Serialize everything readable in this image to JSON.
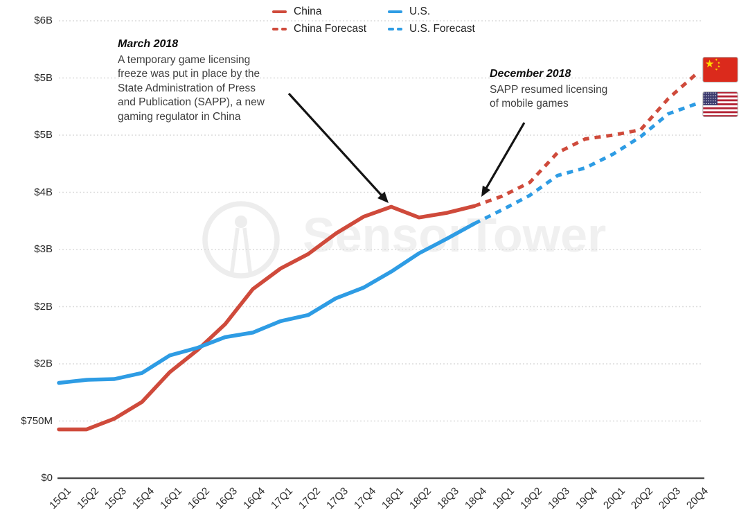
{
  "legend": {
    "items": [
      {
        "label": "China",
        "color": "#CF4A3B",
        "style": "solid"
      },
      {
        "label": "U.S.",
        "color": "#2E9CE4",
        "style": "solid"
      },
      {
        "label": "China Forecast",
        "color": "#CF4A3B",
        "style": "dashed"
      },
      {
        "label": "U.S. Forecast",
        "color": "#2E9CE4",
        "style": "dashed"
      }
    ]
  },
  "annotations": [
    {
      "title": "March 2018",
      "body": "A temporary game licensing freeze was put in place by the State Administration of Press and Publication (SAPP), a new gaming regulator in China"
    },
    {
      "title": "December 2018",
      "body": "SAPP resumed licensing of mobile games"
    }
  ],
  "watermark": {
    "text": "SensorTower",
    "icon": "sensor-tower-logo-icon"
  },
  "icons": {
    "china_flag": "china-flag-icon",
    "us_flag": "us-flag-icon"
  },
  "colors": {
    "china": "#CF4A3B",
    "us": "#2E9CE4",
    "grid": "#DCDCDC",
    "annotation": "#3D3D3D"
  },
  "chart_data": {
    "type": "line",
    "unit": "USD billions per quarter",
    "categories": [
      "15Q1",
      "15Q2",
      "15Q3",
      "15Q4",
      "16Q1",
      "16Q2",
      "16Q3",
      "16Q4",
      "17Q1",
      "17Q2",
      "17Q3",
      "17Q4",
      "18Q1",
      "18Q2",
      "18Q3",
      "18Q4",
      "19Q1",
      "19Q2",
      "19Q3",
      "19Q4",
      "20Q1",
      "20Q2",
      "20Q3",
      "20Q4"
    ],
    "y_ticks": [
      {
        "label": "$6B",
        "value": 6
      },
      {
        "label": "$5B",
        "value": 5.25
      },
      {
        "label": "$5B",
        "value": 4.5
      },
      {
        "label": "$4B",
        "value": 3.75
      },
      {
        "label": "$3B",
        "value": 3
      },
      {
        "label": "$2B",
        "value": 2.25
      },
      {
        "label": "$2B",
        "value": 1.5
      },
      {
        "label": "$750M",
        "value": 0.75
      },
      {
        "label": "$0",
        "value": 0
      }
    ],
    "ylim": [
      0,
      6
    ],
    "grid": "dotted-horizontal",
    "legend_position": "top-center",
    "series": [
      {
        "name": "China",
        "color": "#CF4A3B",
        "dashed": false,
        "start_index": 0,
        "values": [
          0.64,
          0.64,
          0.78,
          1.0,
          1.39,
          1.68,
          2.02,
          2.48,
          2.75,
          2.94,
          3.21,
          3.43,
          3.56,
          3.42,
          3.48,
          3.57
        ]
      },
      {
        "name": "U.S.",
        "color": "#2E9CE4",
        "dashed": false,
        "start_index": 0,
        "values": [
          1.25,
          1.29,
          1.3,
          1.38,
          1.61,
          1.71,
          1.85,
          1.91,
          2.06,
          2.14,
          2.36,
          2.5,
          2.71,
          2.95,
          3.14,
          3.34
        ]
      },
      {
        "name": "China Forecast",
        "color": "#CF4A3B",
        "dashed": true,
        "start_index": 15,
        "values": [
          3.57,
          3.7,
          3.88,
          4.27,
          4.45,
          4.5,
          4.57,
          4.98,
          5.3
        ]
      },
      {
        "name": "U.S. Forecast",
        "color": "#2E9CE4",
        "dashed": true,
        "start_index": 15,
        "values": [
          3.34,
          3.52,
          3.71,
          3.97,
          4.07,
          4.25,
          4.48,
          4.78,
          4.91
        ]
      }
    ]
  }
}
